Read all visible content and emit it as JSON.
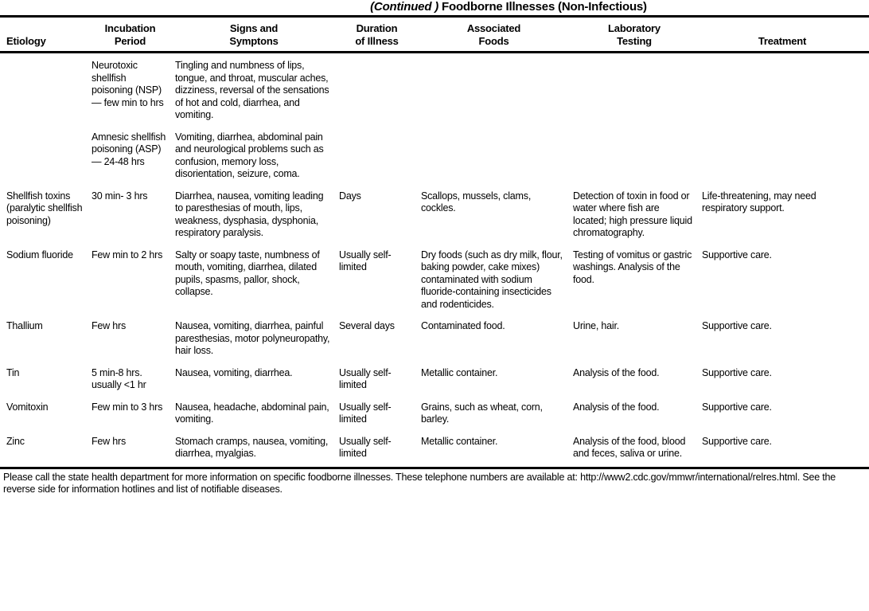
{
  "title": {
    "continued": "(Continued )",
    "main": "Foodborne Illnesses (Non-Infectious)"
  },
  "table": {
    "columns": [
      {
        "line1": "",
        "line2": "Etiology"
      },
      {
        "line1": "Incubation",
        "line2": "Period"
      },
      {
        "line1": "Signs and",
        "line2": "Symptons"
      },
      {
        "line1": "Duration",
        "line2": "of Illness"
      },
      {
        "line1": "Associated",
        "line2": "Foods"
      },
      {
        "line1": "Laboratory",
        "line2": "Testing"
      },
      {
        "line1": "",
        "line2": "Treatment"
      }
    ],
    "rows": [
      {
        "cells": [
          "",
          "Neurotoxic shellfish poisoning (NSP) — few min to hrs",
          "Tingling and numbness of lips, tongue, and throat, muscular aches, dizziness, reversal of the sensations of hot and cold, diarrhea, and vomiting.",
          "",
          "",
          "",
          ""
        ]
      },
      {
        "cells": [
          "",
          "Amnesic shellfish poisoning (ASP) — 24-48 hrs",
          "Vomiting, diarrhea, abdominal pain and neurological problems such as confusion, memory loss, disorientation, seizure, coma.",
          "",
          "",
          "",
          ""
        ]
      },
      {
        "cells": [
          "Shellfish toxins (paralytic shellfish poisoning)",
          "30 min- 3 hrs",
          "Diarrhea, nausea, vomiting leading to paresthesias of mouth, lips, weakness, dysphasia, dysphonia, respiratory paralysis.",
          "Days",
          "Scallops, mussels, clams, cockles.",
          "Detection of toxin in food or water where fish are located; high pressure liquid chromatography.",
          "Life-threatening, may need respiratory support."
        ]
      },
      {
        "cells": [
          "Sodium fluoride",
          "Few min to 2 hrs",
          "Salty or soapy taste, numbness of mouth, vomiting, diarrhea, dilated pupils, spasms, pallor, shock, collapse.",
          "Usually self-limited",
          "Dry foods (such as dry milk, flour, baking powder, cake mixes) contaminated with sodium fluoride-containing insecticides and rodenticides.",
          "Testing of vomitus or gastric washings. Analysis of the food.",
          "Supportive care."
        ]
      },
      {
        "cells": [
          "Thallium",
          "Few hrs",
          "Nausea, vomiting, diarrhea, painful paresthesias, motor polyneuropathy, hair loss.",
          "Several days",
          "Contaminated food.",
          "Urine, hair.",
          "Supportive care."
        ]
      },
      {
        "cells": [
          "Tin",
          "5 min-8 hrs. usually <1 hr",
          "Nausea, vomiting, diarrhea.",
          "Usually self-limited",
          "Metallic container.",
          "Analysis of the food.",
          "Supportive care."
        ]
      },
      {
        "cells": [
          "Vomitoxin",
          "Few min to 3 hrs",
          "Nausea, headache, abdominal pain, vomiting.",
          "Usually self-limited",
          "Grains, such as wheat, corn, barley.",
          "Analysis of the food.",
          "Supportive care."
        ]
      },
      {
        "cells": [
          "Zinc",
          "Few hrs",
          "Stomach cramps, nausea, vomiting, diarrhea, myalgias.",
          "Usually self-limited",
          "Metallic container.",
          "Analysis of the food, blood and feces, saliva or urine.",
          "Supportive care."
        ]
      }
    ]
  },
  "footer": {
    "text": "Please call the state health department for more information on specific foodborne illnesses. These telephone numbers are available at: http://www2.cdc.gov/mmwr/international/relres.html. See the reverse side for information hotlines and list of notifiable diseases."
  }
}
